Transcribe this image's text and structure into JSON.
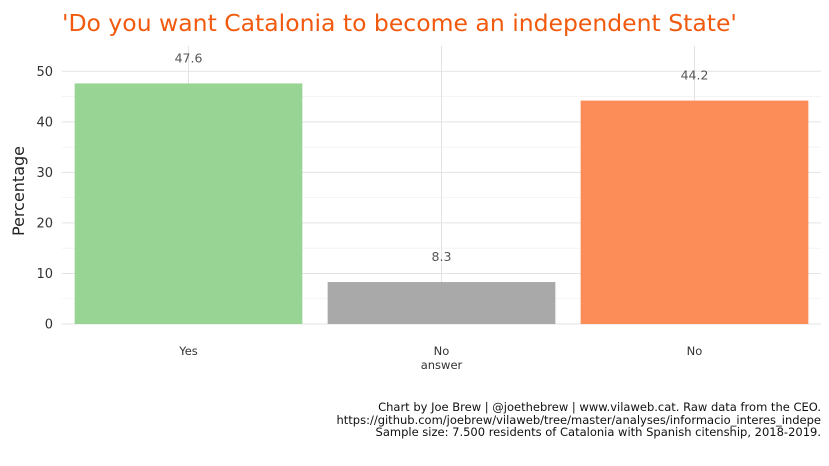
{
  "chart_data": {
    "type": "bar",
    "title": "'Do you want Catalonia to become an independent State'",
    "ylabel": "Percentage",
    "xlabel": "",
    "categories": [
      {
        "line1": "Yes",
        "line2": ""
      },
      {
        "line1": "No",
        "line2": "answer"
      },
      {
        "line1": "No",
        "line2": ""
      }
    ],
    "values": [
      47.6,
      8.3,
      44.2
    ],
    "labels": [
      "47.6",
      "8.3",
      "44.2"
    ],
    "colors": [
      "#98d594",
      "#a9a9a9",
      "#fc8d59"
    ],
    "title_color": "#f15a0e",
    "ylim": [
      0,
      55
    ],
    "yticks": [
      0,
      10,
      20,
      30,
      40,
      50
    ],
    "grid": true,
    "legend": "none"
  },
  "caption": {
    "line1": "Chart by Joe Brew | @joethebrew | www.vilaweb.cat. Raw data from the CEO.",
    "line2": "https://github.com/joebrew/vilaweb/tree/master/analyses/informacio_interes_indepe",
    "line3": "Sample size: 7.500 residents of Catalonia with Spanish citenship, 2018-2019."
  }
}
